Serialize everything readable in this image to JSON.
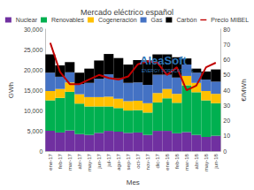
{
  "chart_data": {
    "type": "bar",
    "title": "Mercado eléctrico español",
    "x_label": "Mes",
    "y_label": "GWh",
    "y2_label": "€/MWh",
    "annotations": [
      "AleaSoft",
      "ENERGY FORECASTING"
    ],
    "categories": [
      "ene-17",
      "feb-17",
      "mar-17",
      "abr-17",
      "may-17",
      "jun-17",
      "jul-17",
      "ago-17",
      "sep-17",
      "oct-17",
      "nov-17",
      "dic-17",
      "ene-18",
      "feb-18",
      "mar-18",
      "abr-18",
      "may-18",
      "jun-18"
    ],
    "stacked": true,
    "legend": "top",
    "grid": false,
    "ylim": [
      0,
      30000
    ],
    "yticks": [
      0,
      5000,
      10000,
      15000,
      20000,
      25000,
      30000
    ],
    "y2lim": [
      0,
      80
    ],
    "y2ticks": [
      0,
      10,
      20,
      30,
      40,
      50,
      60,
      70,
      80
    ],
    "series": [
      {
        "name": "Nuclear",
        "type": "bar",
        "color": "#7030a0",
        "values": [
          5000,
          4600,
          5100,
          4200,
          4000,
          4500,
          5000,
          4800,
          4500,
          4600,
          4000,
          5000,
          5000,
          4400,
          4700,
          4000,
          3500,
          3800
        ]
      },
      {
        "name": "Renovables",
        "type": "bar",
        "color": "#00b050",
        "values": [
          7500,
          8500,
          9500,
          7500,
          7000,
          6500,
          6000,
          5800,
          5500,
          5500,
          5500,
          7000,
          8000,
          7500,
          11500,
          10500,
          9000,
          8000
        ]
      },
      {
        "name": "Cogeneración",
        "type": "bar",
        "color": "#ffc000",
        "values": [
          2300,
          2200,
          2300,
          2300,
          2300,
          2300,
          2400,
          2300,
          2300,
          2300,
          2300,
          2300,
          2300,
          2200,
          2300,
          2300,
          2300,
          2300
        ]
      },
      {
        "name": "Gas",
        "type": "bar",
        "color": "#4472c4",
        "values": [
          4500,
          3000,
          2500,
          2500,
          3500,
          4500,
          5500,
          5000,
          4500,
          4500,
          4500,
          4500,
          3500,
          4000,
          2800,
          2500,
          2800,
          3000
        ]
      },
      {
        "name": "Carbón",
        "type": "bar",
        "color": "#000000",
        "values": [
          4500,
          2800,
          2500,
          2800,
          3500,
          4500,
          5000,
          5000,
          4500,
          5500,
          6000,
          5000,
          5000,
          5000,
          1500,
          1000,
          2000,
          3000
        ]
      },
      {
        "name": "Precio MIBEL",
        "type": "line",
        "axis": "y2",
        "color": "#c00000",
        "values": [
          71,
          52,
          44,
          44,
          47,
          50,
          48,
          47,
          49,
          57,
          59,
          58,
          50,
          55,
          40,
          43,
          55,
          58
        ]
      }
    ]
  }
}
